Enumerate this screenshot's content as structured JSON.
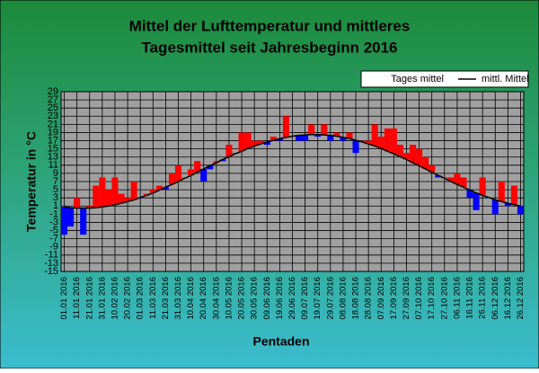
{
  "chart_data": {
    "type": "deviation",
    "title": [
      "Mittel der Lufttemperatur und mittleres",
      "Tagesmittel seit Jahresbeginn 2016"
    ],
    "y_label": "Temperatur in °C",
    "x_label": "Pentaden",
    "categories": [
      "01.01 2016",
      null,
      "11.01 2016",
      null,
      "21.01 2016",
      null,
      "31.01 2016",
      null,
      "10.02 2016",
      null,
      "20.02 2016",
      null,
      "01.03 2016",
      null,
      "11.03 2016",
      null,
      "21.03 2016",
      null,
      "31.03 2016",
      null,
      "10.04 2016",
      null,
      "20.04 2016",
      null,
      "30.04 2016",
      null,
      "10.05 2016",
      null,
      "20.05 2016",
      null,
      "30.05 2016",
      null,
      "09.06 2016",
      null,
      "19.06 2016",
      null,
      "29.06 2016",
      null,
      "09.07 2016",
      null,
      "19.07 2016",
      null,
      "29.07 2016",
      null,
      "08.08 2016",
      null,
      "18.08 2016",
      null,
      "28.08 2016",
      null,
      "07.09 2016",
      null,
      "17.09 2016",
      null,
      "27.09 2016",
      null,
      "07.10 2016",
      null,
      "17.10 2016",
      null,
      "27.10 2016",
      null,
      "06.11 2016",
      null,
      "16.11 2016",
      null,
      "26.11 2016",
      null,
      "06.12 2016",
      null,
      "16.12 2016",
      null,
      "26.12 2016"
    ],
    "series": [
      {
        "name": "Tages mittel",
        "color": "#ff0000",
        "color_below": "#0000ff",
        "values": [
          -6,
          -4,
          3,
          -6,
          1,
          6,
          8,
          5,
          8,
          4,
          3,
          7,
          3,
          4,
          5,
          6,
          5,
          9,
          11,
          8,
          10,
          12,
          7,
          10,
          12,
          12,
          16,
          14,
          19,
          19,
          17,
          17,
          16,
          18,
          17,
          23,
          18,
          17,
          17,
          21,
          18,
          21,
          17,
          19,
          17,
          19,
          14,
          17,
          17,
          21,
          18,
          20,
          20,
          16,
          14,
          16,
          15,
          13,
          11,
          8,
          8,
          8,
          9,
          8,
          3,
          0,
          8,
          3,
          -1,
          7,
          1,
          6,
          -1
        ]
      },
      {
        "name": "mittl. Mittel",
        "color": "#000000",
        "values": [
          0.8,
          0.6,
          0.5,
          0.5,
          0.5,
          0.6,
          0.8,
          1.0,
          1.3,
          1.7,
          2.1,
          2.5,
          3.1,
          3.6,
          4.2,
          4.9,
          5.6,
          6.3,
          7.0,
          7.8,
          8.5,
          9.3,
          10.1,
          10.9,
          11.6,
          12.4,
          13.1,
          13.8,
          14.4,
          15.1,
          15.7,
          16.2,
          16.7,
          17.1,
          17.5,
          17.8,
          18.1,
          18.3,
          18.4,
          18.5,
          18.5,
          18.4,
          18.3,
          18.1,
          17.8,
          17.5,
          17.1,
          16.7,
          16.2,
          15.7,
          15.1,
          14.4,
          13.8,
          13.1,
          12.4,
          11.6,
          10.9,
          10.1,
          9.3,
          8.5,
          7.8,
          7.0,
          6.3,
          5.6,
          4.9,
          4.2,
          3.6,
          3.1,
          2.5,
          2.1,
          1.7,
          1.3,
          1.0
        ]
      }
    ],
    "ylim": [
      -15,
      29
    ],
    "yticks": [
      -15,
      -13,
      -11,
      -9,
      -7,
      -5,
      -3,
      -1,
      1,
      3,
      5,
      7,
      9,
      11,
      13,
      15,
      17,
      19,
      21,
      23,
      25,
      27,
      29
    ],
    "grid": true
  }
}
